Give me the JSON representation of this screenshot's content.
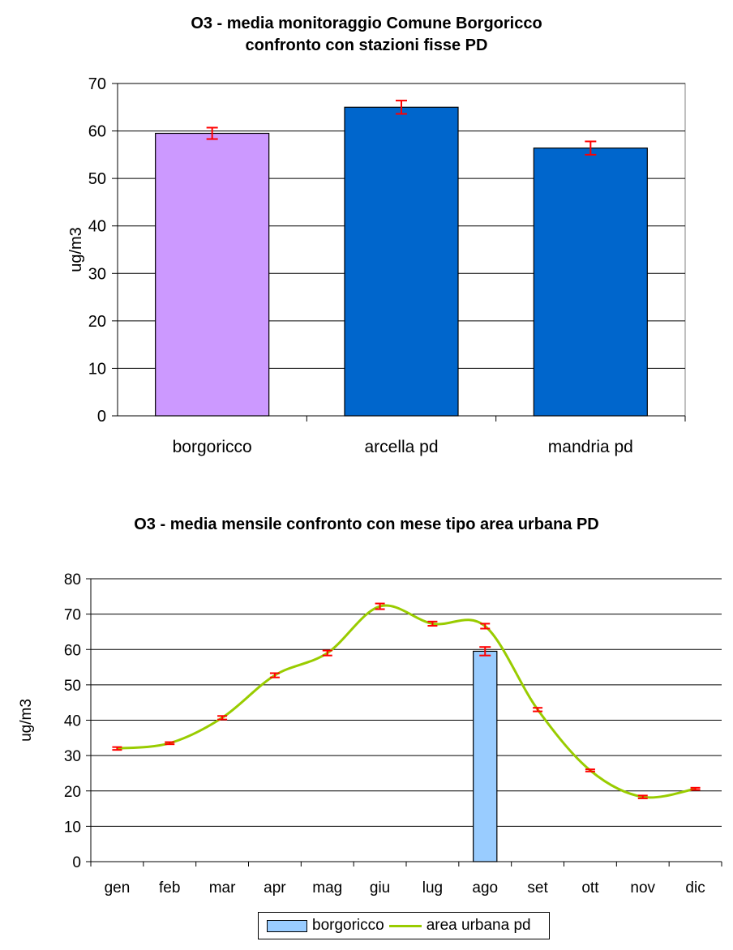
{
  "chart_data": [
    {
      "type": "bar",
      "title": [
        "O3 - media monitoraggio Comune Borgoricco",
        "confronto con stazioni fisse PD"
      ],
      "ylabel": "ug/m3",
      "xlabel": "",
      "ylim": [
        0,
        70
      ],
      "yticks": [
        0,
        10,
        20,
        30,
        40,
        50,
        60,
        70
      ],
      "grid": true,
      "categories": [
        "borgoricco",
        "arcella pd",
        "mandria pd"
      ],
      "values": [
        59.5,
        65.0,
        56.4
      ],
      "error": [
        1.2,
        1.4,
        1.4
      ],
      "bar_colors": [
        "#cc99ff",
        "#0066cc",
        "#0066cc"
      ],
      "error_color": "#ff0000"
    },
    {
      "type": "bar+line",
      "title": "O3 - media mensile confronto con mese tipo area urbana PD",
      "ylabel": "ug/m3",
      "xlabel": "",
      "ylim": [
        0,
        80
      ],
      "yticks": [
        0,
        10,
        20,
        30,
        40,
        50,
        60,
        70,
        80
      ],
      "grid": true,
      "categories": [
        "gen",
        "feb",
        "mar",
        "apr",
        "mag",
        "giu",
        "lug",
        "ago",
        "set",
        "ott",
        "nov",
        "dic"
      ],
      "series": [
        {
          "name": "borgoricco",
          "type": "bar",
          "color": "#99ccff",
          "values": [
            null,
            null,
            null,
            null,
            null,
            null,
            null,
            59.5,
            null,
            null,
            null,
            null
          ],
          "error": [
            null,
            null,
            null,
            null,
            null,
            null,
            null,
            1.2,
            null,
            null,
            null,
            null
          ]
        },
        {
          "name": "area urbana pd",
          "type": "line",
          "color": "#99cc00",
          "values": [
            32,
            33.5,
            40.7,
            52.7,
            59,
            72.2,
            67.3,
            66.6,
            43,
            25.8,
            18.3,
            20.6
          ],
          "error": [
            0.4,
            0.3,
            0.5,
            0.6,
            0.7,
            0.8,
            0.6,
            0.7,
            0.5,
            0.3,
            0.4,
            0.3
          ]
        }
      ],
      "error_color": "#ff0000",
      "legend_position": "bottom"
    }
  ]
}
